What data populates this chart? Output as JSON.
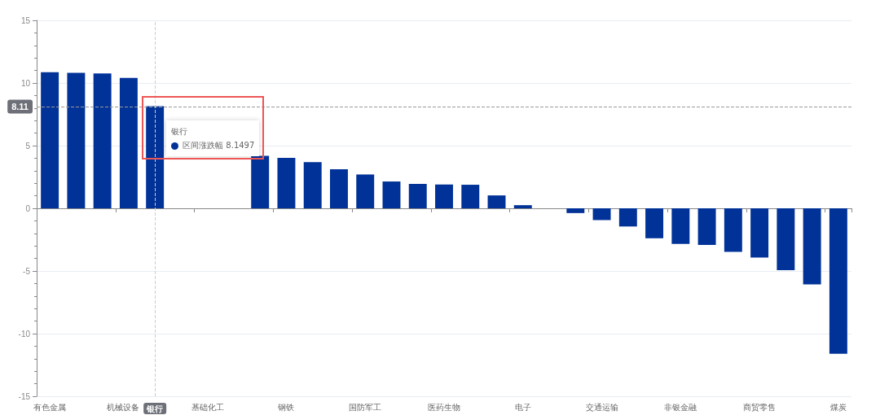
{
  "chart_data": {
    "type": "bar",
    "categories": [
      "有色金属",
      null,
      null,
      "机械设备",
      "银行",
      null,
      "基础化工",
      null,
      null,
      "钢铁",
      null,
      null,
      "国防军工",
      null,
      null,
      "医药生物",
      null,
      null,
      "电子",
      null,
      null,
      "交通运输",
      null,
      null,
      "非银金融",
      null,
      null,
      "商贸零售",
      null,
      null,
      "煤炭"
    ],
    "series": [
      {
        "color": "#003298",
        "values": [
          10.86,
          10.81,
          10.77,
          10.41,
          8.1497,
          null,
          null,
          null,
          4.19,
          4.03,
          3.69,
          3.11,
          2.7,
          2.14,
          1.94,
          1.9,
          1.88,
          1.03,
          0.25,
          0,
          -0.38,
          -0.94,
          -1.45,
          -2.39,
          -2.84,
          -2.92,
          -3.48,
          -3.93,
          -4.93,
          -6.07,
          -11.6
        ]
      }
    ],
    "ylim": [
      -15,
      15
    ],
    "yticks": [
      -15,
      -10,
      -5,
      0,
      5,
      10,
      15
    ],
    "grid": "y",
    "ref_lines": [
      {
        "axis": "y",
        "value": 8.11,
        "label": "8.11",
        "line_style": "dashed",
        "color": "#999999"
      },
      {
        "axis": "x",
        "value": "银行",
        "line_style": "dashed",
        "color": "#cccccc"
      }
    ],
    "annotations": [
      "区间涨跌幅 8.1497"
    ]
  }
}
